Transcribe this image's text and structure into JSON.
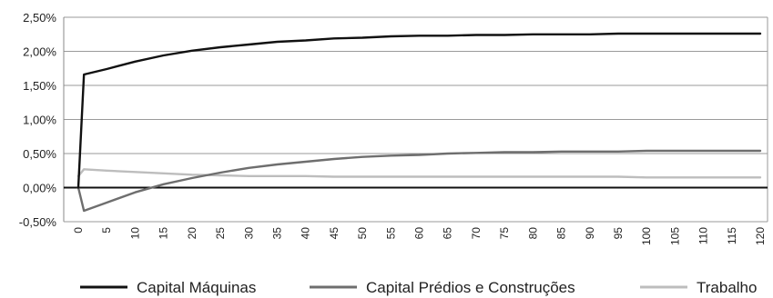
{
  "chart_data": {
    "type": "line",
    "title": "",
    "xlabel": "",
    "ylabel": "",
    "ylim": [
      -0.5,
      2.5
    ],
    "xlim": [
      0,
      120
    ],
    "grid": true,
    "legend_position": "bottom",
    "y_ticks": [
      2.5,
      2.0,
      1.5,
      1.0,
      0.5,
      0.0,
      -0.5
    ],
    "y_tick_labels": [
      "2,50%",
      "2,00%",
      "1,50%",
      "1,00%",
      "0,50%",
      "0,00%",
      "-0,50%"
    ],
    "x_ticks": [
      0,
      5,
      10,
      15,
      20,
      25,
      30,
      35,
      40,
      45,
      50,
      55,
      60,
      65,
      70,
      75,
      80,
      85,
      90,
      95,
      100,
      105,
      110,
      115,
      120
    ],
    "x_tick_labels": [
      "0",
      "5",
      "10",
      "15",
      "20",
      "25",
      "30",
      "35",
      "40",
      "45",
      "50",
      "55",
      "60",
      "65",
      "70",
      "75",
      "80",
      "85",
      "90",
      "95",
      "100",
      "105",
      "110",
      "115",
      "120"
    ],
    "series": [
      {
        "name": "Capital Máquinas",
        "color": "#111111",
        "x": [
          0,
          1,
          5,
          10,
          15,
          20,
          25,
          30,
          35,
          40,
          45,
          50,
          55,
          60,
          65,
          70,
          75,
          80,
          85,
          90,
          95,
          100,
          105,
          110,
          115,
          120
        ],
        "values": [
          0.0,
          1.66,
          1.74,
          1.85,
          1.94,
          2.01,
          2.06,
          2.1,
          2.14,
          2.16,
          2.19,
          2.2,
          2.22,
          2.23,
          2.23,
          2.24,
          2.24,
          2.25,
          2.25,
          2.25,
          2.26,
          2.26,
          2.26,
          2.26,
          2.26,
          2.26
        ]
      },
      {
        "name": "Capital Prédios e Construções",
        "color": "#6e6e6e",
        "x": [
          0,
          1,
          5,
          10,
          15,
          20,
          25,
          30,
          35,
          40,
          45,
          50,
          55,
          60,
          65,
          70,
          75,
          80,
          85,
          90,
          95,
          100,
          105,
          110,
          115,
          120
        ],
        "values": [
          0.0,
          -0.34,
          -0.22,
          -0.07,
          0.05,
          0.14,
          0.22,
          0.29,
          0.34,
          0.38,
          0.42,
          0.45,
          0.47,
          0.48,
          0.5,
          0.51,
          0.52,
          0.52,
          0.53,
          0.53,
          0.53,
          0.54,
          0.54,
          0.54,
          0.54,
          0.54
        ]
      },
      {
        "name": "Trabalho",
        "color": "#bdbdbd",
        "x": [
          0,
          1,
          5,
          10,
          15,
          20,
          25,
          30,
          35,
          40,
          45,
          50,
          55,
          60,
          65,
          70,
          75,
          80,
          85,
          90,
          95,
          100,
          105,
          110,
          115,
          120
        ],
        "values": [
          0.17,
          0.27,
          0.25,
          0.23,
          0.21,
          0.19,
          0.18,
          0.17,
          0.17,
          0.17,
          0.16,
          0.16,
          0.16,
          0.16,
          0.16,
          0.16,
          0.16,
          0.16,
          0.16,
          0.16,
          0.16,
          0.15,
          0.15,
          0.15,
          0.15,
          0.15
        ]
      }
    ]
  }
}
